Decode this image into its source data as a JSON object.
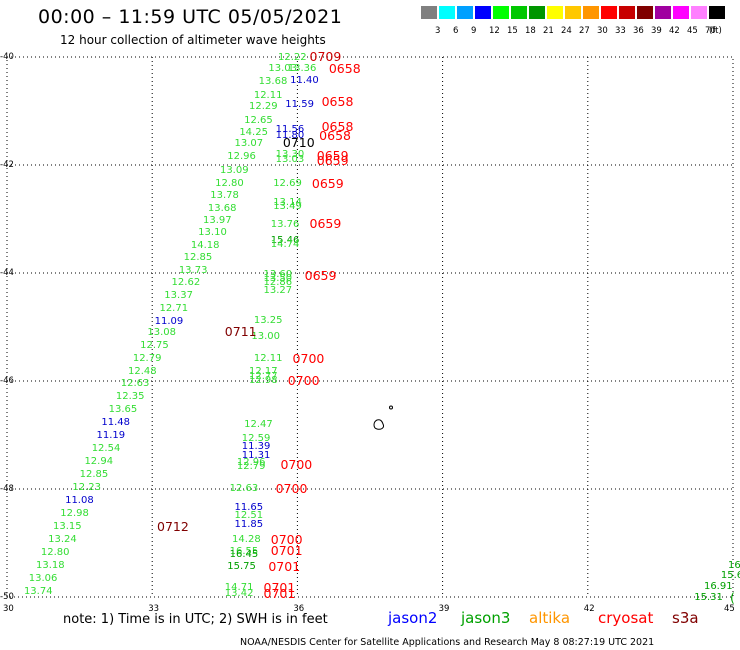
{
  "title": "00:00 – 11:59 UTC 05/05/2021",
  "subtitle": "12 hour collection of altimeter wave heights",
  "legend": {
    "unit": "(ft)",
    "bins": [
      {
        "label": "3",
        "color": "#808080"
      },
      {
        "label": "6",
        "color": "#00ffff"
      },
      {
        "label": "9",
        "color": "#00a0ff"
      },
      {
        "label": "12",
        "color": "#0000ff"
      },
      {
        "label": "15",
        "color": "#00ff00"
      },
      {
        "label": "18",
        "color": "#00c800"
      },
      {
        "label": "21",
        "color": "#009600"
      },
      {
        "label": "24",
        "color": "#ffff00"
      },
      {
        "label": "27",
        "color": "#ffc800"
      },
      {
        "label": "30",
        "color": "#ff9600"
      },
      {
        "label": "33",
        "color": "#ff0000"
      },
      {
        "label": "36",
        "color": "#c80000"
      },
      {
        "label": "39",
        "color": "#800000"
      },
      {
        "label": "42",
        "color": "#a000a0"
      },
      {
        "label": "45",
        "color": "#ff00ff"
      },
      {
        "label": "70",
        "color": "#ff80ff"
      },
      {
        "label": "",
        "color": "#000000"
      }
    ]
  },
  "axes": {
    "x_ticks": [
      "30",
      "33",
      "36",
      "39",
      "42",
      "45"
    ],
    "y_ticks": [
      "-40",
      "-42",
      "-44",
      "-46",
      "-48",
      "-50"
    ],
    "x_range": [
      30,
      45
    ],
    "y_range": [
      -40,
      -50
    ],
    "grid": "dotted"
  },
  "swh_labels": [
    {
      "text": "12.22",
      "lon": 35.6,
      "lat": -40.02,
      "c": "#33dd33"
    },
    {
      "text": "13.03",
      "lon": 35.4,
      "lat": -40.22,
      "c": "#33dd33"
    },
    {
      "text": "13.36",
      "lon": 35.8,
      "lat": -40.22,
      "c": "#33dd33"
    },
    {
      "text": "13.68",
      "lon": 35.2,
      "lat": -40.46,
      "c": "#33dd33"
    },
    {
      "text": "11.40",
      "lon": 35.85,
      "lat": -40.44,
      "c": "#0000cc"
    },
    {
      "text": "12.11",
      "lon": 35.1,
      "lat": -40.72,
      "c": "#33dd33"
    },
    {
      "text": "12.29",
      "lon": 35.0,
      "lat": -40.92,
      "c": "#33dd33"
    },
    {
      "text": "11.59",
      "lon": 35.75,
      "lat": -40.88,
      "c": "#0000cc"
    },
    {
      "text": "12.65",
      "lon": 34.9,
      "lat": -41.18,
      "c": "#33dd33"
    },
    {
      "text": "14.25",
      "lon": 34.8,
      "lat": -41.4,
      "c": "#33dd33"
    },
    {
      "text": "11.56",
      "lon": 35.55,
      "lat": -41.36,
      "c": "#0000cc"
    },
    {
      "text": "11.80",
      "lon": 35.55,
      "lat": -41.46,
      "c": "#0000cc"
    },
    {
      "text": "13.07",
      "lon": 34.7,
      "lat": -41.62,
      "c": "#33dd33"
    },
    {
      "text": "12.96",
      "lon": 34.55,
      "lat": -41.86,
      "c": "#33dd33"
    },
    {
      "text": "13.30",
      "lon": 35.55,
      "lat": -41.82,
      "c": "#33dd33"
    },
    {
      "text": "13.03",
      "lon": 35.55,
      "lat": -41.9,
      "c": "#33dd33"
    },
    {
      "text": "13.09",
      "lon": 34.4,
      "lat": -42.12,
      "c": "#33dd33"
    },
    {
      "text": "12.80",
      "lon": 34.3,
      "lat": -42.36,
      "c": "#33dd33"
    },
    {
      "text": "12.69",
      "lon": 35.5,
      "lat": -42.36,
      "c": "#33dd33"
    },
    {
      "text": "13.78",
      "lon": 34.2,
      "lat": -42.58,
      "c": "#33dd33"
    },
    {
      "text": "13.14",
      "lon": 35.5,
      "lat": -42.7,
      "c": "#33dd33"
    },
    {
      "text": "13.49",
      "lon": 35.5,
      "lat": -42.78,
      "c": "#33dd33"
    },
    {
      "text": "13.68",
      "lon": 34.15,
      "lat": -42.82,
      "c": "#33dd33"
    },
    {
      "text": "13.97",
      "lon": 34.05,
      "lat": -43.04,
      "c": "#33dd33"
    },
    {
      "text": "13.76",
      "lon": 35.45,
      "lat": -43.12,
      "c": "#33dd33"
    },
    {
      "text": "13.10",
      "lon": 33.95,
      "lat": -43.26,
      "c": "#33dd33"
    },
    {
      "text": "14.18",
      "lon": 33.8,
      "lat": -43.5,
      "c": "#33dd33"
    },
    {
      "text": "15.46",
      "lon": 35.45,
      "lat": -43.4,
      "c": "#00a000"
    },
    {
      "text": "14.74",
      "lon": 35.45,
      "lat": -43.48,
      "c": "#33dd33"
    },
    {
      "text": "12.85",
      "lon": 33.65,
      "lat": -43.72,
      "c": "#33dd33"
    },
    {
      "text": "13.73",
      "lon": 33.55,
      "lat": -43.96,
      "c": "#33dd33"
    },
    {
      "text": "13.60",
      "lon": 35.3,
      "lat": -44.04,
      "c": "#33dd33"
    },
    {
      "text": "13.50",
      "lon": 35.3,
      "lat": -44.12,
      "c": "#33dd33"
    },
    {
      "text": "12.86",
      "lon": 35.3,
      "lat": -44.18,
      "c": "#33dd33"
    },
    {
      "text": "12.62",
      "lon": 33.4,
      "lat": -44.18,
      "c": "#33dd33"
    },
    {
      "text": "13.27",
      "lon": 35.3,
      "lat": -44.34,
      "c": "#33dd33"
    },
    {
      "text": "13.37",
      "lon": 33.25,
      "lat": -44.42,
      "c": "#33dd33"
    },
    {
      "text": "12.71",
      "lon": 33.15,
      "lat": -44.66,
      "c": "#33dd33"
    },
    {
      "text": "13.25",
      "lon": 35.1,
      "lat": -44.88,
      "c": "#33dd33"
    },
    {
      "text": "11.09",
      "lon": 33.05,
      "lat": -44.9,
      "c": "#0000cc"
    },
    {
      "text": "13.08",
      "lon": 32.9,
      "lat": -45.12,
      "c": "#33dd33"
    },
    {
      "text": "13.00",
      "lon": 35.05,
      "lat": -45.18,
      "c": "#33dd33"
    },
    {
      "text": "12.75",
      "lon": 32.75,
      "lat": -45.36,
      "c": "#33dd33"
    },
    {
      "text": "12.79",
      "lon": 32.6,
      "lat": -45.6,
      "c": "#33dd33"
    },
    {
      "text": "12.11",
      "lon": 35.1,
      "lat": -45.6,
      "c": "#33dd33"
    },
    {
      "text": "12.48",
      "lon": 32.5,
      "lat": -45.84,
      "c": "#33dd33"
    },
    {
      "text": "12.17",
      "lon": 35.0,
      "lat": -45.84,
      "c": "#33dd33"
    },
    {
      "text": "12.77",
      "lon": 35.0,
      "lat": -45.92,
      "c": "#33dd33"
    },
    {
      "text": "12.98",
      "lon": 35.0,
      "lat": -46.0,
      "c": "#33dd33"
    },
    {
      "text": "12.63",
      "lon": 32.35,
      "lat": -46.06,
      "c": "#33dd33"
    },
    {
      "text": "12.35",
      "lon": 32.25,
      "lat": -46.3,
      "c": "#33dd33"
    },
    {
      "text": "13.65",
      "lon": 32.1,
      "lat": -46.54,
      "c": "#33dd33"
    },
    {
      "text": "12.47",
      "lon": 34.9,
      "lat": -46.82,
      "c": "#33dd33"
    },
    {
      "text": "11.48",
      "lon": 31.95,
      "lat": -46.78,
      "c": "#0000cc"
    },
    {
      "text": "11.19",
      "lon": 31.85,
      "lat": -47.02,
      "c": "#0000cc"
    },
    {
      "text": "12.59",
      "lon": 34.85,
      "lat": -47.08,
      "c": "#33dd33"
    },
    {
      "text": "11.39",
      "lon": 34.85,
      "lat": -47.22,
      "c": "#0000cc"
    },
    {
      "text": "12.54",
      "lon": 31.75,
      "lat": -47.26,
      "c": "#33dd33"
    },
    {
      "text": "11.31",
      "lon": 34.85,
      "lat": -47.38,
      "c": "#0000cc"
    },
    {
      "text": "12.94",
      "lon": 31.6,
      "lat": -47.5,
      "c": "#33dd33"
    },
    {
      "text": "12.96",
      "lon": 34.75,
      "lat": -47.52,
      "c": "#33dd33"
    },
    {
      "text": "12.79",
      "lon": 34.75,
      "lat": -47.6,
      "c": "#33dd33"
    },
    {
      "text": "12.85",
      "lon": 31.5,
      "lat": -47.74,
      "c": "#33dd33"
    },
    {
      "text": "12.23",
      "lon": 31.35,
      "lat": -47.98,
      "c": "#33dd33"
    },
    {
      "text": "12.63",
      "lon": 34.6,
      "lat": -48.0,
      "c": "#33dd33"
    },
    {
      "text": "11.08",
      "lon": 31.2,
      "lat": -48.22,
      "c": "#0000cc"
    },
    {
      "text": "11.65",
      "lon": 34.7,
      "lat": -48.36,
      "c": "#0000cc"
    },
    {
      "text": "12.98",
      "lon": 31.1,
      "lat": -48.46,
      "c": "#33dd33"
    },
    {
      "text": "12.51",
      "lon": 34.7,
      "lat": -48.5,
      "c": "#33dd33"
    },
    {
      "text": "13.15",
      "lon": 30.95,
      "lat": -48.7,
      "c": "#33dd33"
    },
    {
      "text": "11.85",
      "lon": 34.7,
      "lat": -48.66,
      "c": "#0000cc"
    },
    {
      "text": "13.24",
      "lon": 30.85,
      "lat": -48.94,
      "c": "#33dd33"
    },
    {
      "text": "14.28",
      "lon": 34.65,
      "lat": -48.94,
      "c": "#33dd33"
    },
    {
      "text": "16.55",
      "lon": 34.6,
      "lat": -49.16,
      "c": "#33dd33"
    },
    {
      "text": "16.45",
      "lon": 34.6,
      "lat": -49.22,
      "c": "#00a000"
    },
    {
      "text": "12.80",
      "lon": 30.7,
      "lat": -49.18,
      "c": "#33dd33"
    },
    {
      "text": "15.75",
      "lon": 34.55,
      "lat": -49.44,
      "c": "#00a000"
    },
    {
      "text": "13.18",
      "lon": 30.6,
      "lat": -49.42,
      "c": "#33dd33"
    },
    {
      "text": "13.06",
      "lon": 30.45,
      "lat": -49.66,
      "c": "#33dd33"
    },
    {
      "text": "14.71",
      "lon": 34.5,
      "lat": -49.84,
      "c": "#33dd33"
    },
    {
      "text": "13.74",
      "lon": 30.35,
      "lat": -49.9,
      "c": "#33dd33"
    },
    {
      "text": "13.42",
      "lon": 34.5,
      "lat": -49.94,
      "c": "#33dd33"
    },
    {
      "text": "16.",
      "lon": 44.9,
      "lat": -49.42,
      "c": "#00a000"
    },
    {
      "text": "15.6",
      "lon": 44.75,
      "lat": -49.62,
      "c": "#00a000"
    },
    {
      "text": "16.91",
      "lon": 44.4,
      "lat": -49.82,
      "c": "#00a000"
    },
    {
      "text": "15.31",
      "lon": 44.2,
      "lat": -50.02,
      "c": "#00a000"
    }
  ],
  "time_labels": [
    {
      "text": "0709",
      "lon": 36.25,
      "lat": -40.0,
      "c": "#cc0000"
    },
    {
      "text": "0658",
      "lon": 36.65,
      "lat": -40.22,
      "c": "#ff0000"
    },
    {
      "text": "0658",
      "lon": 36.5,
      "lat": -40.84,
      "c": "#ff0000"
    },
    {
      "text": "0658",
      "lon": 36.5,
      "lat": -41.3,
      "c": "#ff0000"
    },
    {
      "text": "0658",
      "lon": 36.45,
      "lat": -41.46,
      "c": "#ff0000"
    },
    {
      "text": "0710",
      "lon": 35.7,
      "lat": -41.6,
      "c": "#000000"
    },
    {
      "text": "0659",
      "lon": 36.4,
      "lat": -41.84,
      "c": "#ff0000"
    },
    {
      "text": "0659",
      "lon": 36.4,
      "lat": -41.92,
      "c": "#ff0000"
    },
    {
      "text": "0659",
      "lon": 36.3,
      "lat": -42.36,
      "c": "#ff0000"
    },
    {
      "text": "0659",
      "lon": 36.25,
      "lat": -43.1,
      "c": "#ff0000"
    },
    {
      "text": "0659",
      "lon": 36.15,
      "lat": -44.06,
      "c": "#ff0000"
    },
    {
      "text": "0711",
      "lon": 34.5,
      "lat": -45.1,
      "c": "#800000"
    },
    {
      "text": "0700",
      "lon": 35.9,
      "lat": -45.6,
      "c": "#ff0000"
    },
    {
      "text": "0700",
      "lon": 35.8,
      "lat": -46.0,
      "c": "#ff0000"
    },
    {
      "text": "0700",
      "lon": 35.65,
      "lat": -47.56,
      "c": "#ff0000"
    },
    {
      "text": "0700",
      "lon": 35.55,
      "lat": -48.0,
      "c": "#ff0000"
    },
    {
      "text": "0712",
      "lon": 33.1,
      "lat": -48.7,
      "c": "#800000"
    },
    {
      "text": "0700",
      "lon": 35.45,
      "lat": -48.94,
      "c": "#ff0000"
    },
    {
      "text": "0701",
      "lon": 35.45,
      "lat": -49.14,
      "c": "#ff0000"
    },
    {
      "text": "0701",
      "lon": 35.4,
      "lat": -49.44,
      "c": "#ff0000"
    },
    {
      "text": "0701",
      "lon": 35.3,
      "lat": -49.84,
      "c": "#ff0000"
    },
    {
      "text": "0701",
      "lon": 35.3,
      "lat": -49.94,
      "c": "#ff0000"
    },
    {
      "text": "(",
      "lon": 44.95,
      "lat": -50.02,
      "c": "#00a000"
    }
  ],
  "note": "note: 1) Time is in UTC; 2) SWH is in feet",
  "satellites": [
    {
      "name": "jason2",
      "color": "#0000ff"
    },
    {
      "name": "jason3",
      "color": "#00a000"
    },
    {
      "name": "altika",
      "color": "#ff9600"
    },
    {
      "name": "cryosat",
      "color": "#ff0000"
    },
    {
      "name": "s3a",
      "color": "#800000"
    }
  ],
  "footer": "NOAA/NESDIS Center for Satellite Applications and Research    May  8 08:27:19 UTC 2021"
}
